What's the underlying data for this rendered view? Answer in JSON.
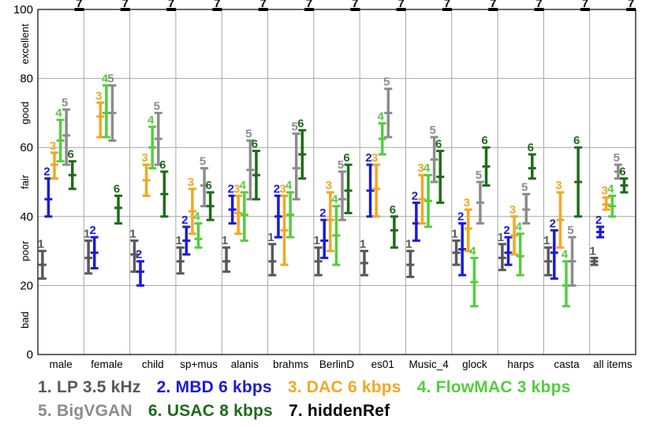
{
  "chart_data": {
    "type": "box-errorbar",
    "ylim": [
      0,
      100
    ],
    "yticks": [
      0,
      20,
      40,
      60,
      80,
      100
    ],
    "quality_labels": [
      {
        "label": "bad",
        "y": 10
      },
      {
        "label": "poor",
        "y": 30
      },
      {
        "label": "fair",
        "y": 50
      },
      {
        "label": "good",
        "y": 70
      },
      {
        "label": "excellent",
        "y": 90
      }
    ],
    "grid": true,
    "categories": [
      "male",
      "female",
      "child",
      "sp+mus",
      "alanis",
      "brahms",
      "BerlinD",
      "es01",
      "Music_4",
      "glock",
      "harps",
      "casta",
      "all items"
    ],
    "series": [
      {
        "id": "1",
        "name": "1. LP 3.5 kHz",
        "color": "#595959",
        "mean": [
          26,
          28,
          29,
          27,
          27,
          27,
          27,
          26.5,
          26,
          29.5,
          28,
          27,
          27
        ],
        "low": [
          22,
          23.5,
          24,
          23.5,
          24,
          23,
          23,
          23,
          22.5,
          26,
          24.5,
          23,
          26
        ],
        "high": [
          30,
          33,
          33,
          31,
          31,
          32,
          31,
          30,
          30,
          33,
          32,
          31,
          28
        ]
      },
      {
        "id": "2",
        "name": "2. MBD 6 kbps",
        "color": "#1a1adb",
        "mean": [
          45,
          29.5,
          24,
          33,
          42,
          40,
          33,
          47.5,
          38,
          30.5,
          29.5,
          29.5,
          35.5
        ],
        "low": [
          40,
          25,
          20,
          29,
          38,
          34,
          28,
          40,
          33,
          23,
          26,
          22,
          34
        ],
        "high": [
          51,
          34,
          27,
          37,
          46,
          46,
          39,
          55,
          44,
          38,
          34,
          36,
          37
        ]
      },
      {
        "id": "3",
        "name": "3. DAC 6 kbps",
        "color": "#f5a623",
        "mean": [
          55,
          69,
          50.5,
          41.5,
          41,
          36,
          39,
          48,
          45,
          36.5,
          34.5,
          39,
          43.5
        ],
        "low": [
          51,
          63,
          46,
          35,
          35,
          26,
          30,
          40,
          38,
          30,
          29,
          31,
          42
        ],
        "high": [
          58.5,
          73,
          55,
          48,
          46,
          46,
          47,
          55,
          52,
          42,
          40,
          47,
          45.5
        ]
      },
      {
        "id": "4",
        "name": "4. FlowMAC 3 kbps",
        "color": "#55cc40",
        "mean": [
          62,
          70,
          60,
          33.5,
          40.5,
          40.5,
          34.5,
          62.5,
          44.5,
          21,
          28.5,
          20,
          43
        ],
        "low": [
          56,
          63,
          54,
          31,
          33,
          34,
          26,
          58,
          37,
          14,
          23,
          14,
          40
        ],
        "high": [
          68,
          78,
          66,
          38,
          47,
          47,
          43,
          67,
          52,
          28,
          35,
          27,
          46
        ]
      },
      {
        "id": "5",
        "name": "5. BigVGAN",
        "color": "#8c8c8c",
        "mean": [
          63.5,
          70,
          62.5,
          49,
          53.5,
          54,
          45,
          70,
          56.5,
          44,
          42,
          27,
          53
        ],
        "low": [
          55,
          62,
          55,
          43,
          45,
          45,
          39,
          63,
          50,
          38,
          38,
          20,
          51
        ],
        "high": [
          71,
          78,
          70,
          54,
          62,
          64,
          53,
          77,
          63,
          50,
          46.5,
          34,
          55
        ]
      },
      {
        "id": "6",
        "name": "6. USAC 8 kbps",
        "color": "#1e6b1a",
        "mean": [
          52,
          42.5,
          46.5,
          43,
          52,
          58,
          47.5,
          36,
          51.5,
          54.5,
          54,
          50,
          49
        ],
        "low": [
          48,
          38,
          40,
          39,
          45,
          51,
          41,
          31,
          44,
          49,
          51,
          40,
          47
        ],
        "high": [
          56,
          46,
          53,
          47,
          59,
          65,
          55,
          40,
          59,
          60,
          58,
          60,
          51
        ]
      },
      {
        "id": "7",
        "name": "7. hiddenRef",
        "color": "#000000",
        "mean": [
          100,
          100,
          100,
          100,
          100,
          100,
          100,
          100,
          100,
          100,
          100,
          100,
          100
        ],
        "low": [
          100,
          100,
          100,
          100,
          100,
          100,
          100,
          100,
          100,
          100,
          100,
          100,
          100
        ],
        "high": [
          100,
          100,
          100,
          100,
          100,
          100,
          100,
          100,
          100,
          100,
          100,
          100,
          100
        ]
      }
    ]
  },
  "legend": {
    "row1": [
      "1. LP 3.5 kHz",
      "2. MBD 6 kbps",
      "3. DAC 6 kbps",
      "4. FlowMAC 3 kbps"
    ],
    "row2": [
      "5. BigVGAN",
      "6. USAC 8 kbps",
      "7. hiddenRef"
    ]
  }
}
